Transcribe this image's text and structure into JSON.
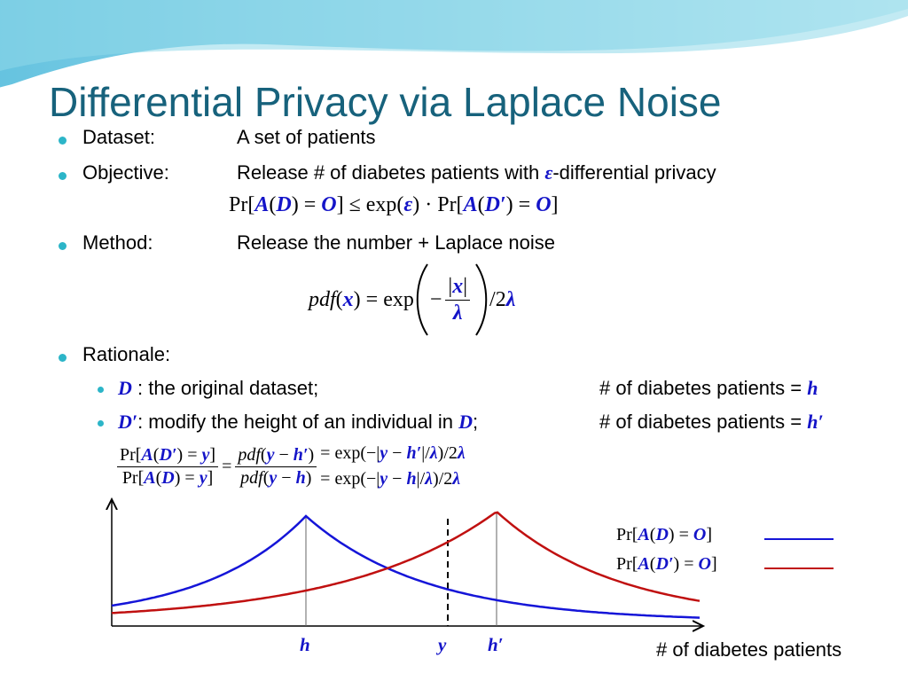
{
  "title": "Differential Privacy via Laplace Noise",
  "bullets": [
    {
      "label": "Dataset:",
      "text": [
        [
          "A set of patients",
          "n"
        ]
      ]
    },
    {
      "label": "Objective:",
      "text": [
        [
          "Release # of diabetes patients with ",
          "n"
        ],
        [
          "ε",
          "b"
        ],
        [
          "-differential privacy",
          "n"
        ]
      ]
    },
    {
      "label": "Method:",
      "text": [
        [
          "Release the number + Laplace noise",
          "n"
        ]
      ]
    },
    {
      "label": "Rationale:",
      "text": []
    }
  ],
  "privacy_formula": [
    [
      "Pr[",
      "n"
    ],
    [
      "A",
      "b"
    ],
    [
      "(",
      "n"
    ],
    [
      "D",
      "b"
    ],
    [
      ") = ",
      "n"
    ],
    [
      "O",
      "b"
    ],
    [
      "] ≤ exp(",
      "n"
    ],
    [
      "ε",
      "b"
    ],
    [
      ") · Pr[",
      "n"
    ],
    [
      "A",
      "b"
    ],
    [
      "(",
      "n"
    ],
    [
      "D′",
      "b"
    ],
    [
      ") = ",
      "n"
    ],
    [
      "O",
      "b"
    ],
    [
      "]",
      "n"
    ]
  ],
  "pdf_formula": {
    "left": [
      [
        "pdf",
        "i"
      ],
      [
        "(",
        "n"
      ],
      [
        "x",
        "b"
      ],
      [
        ") = exp",
        "n"
      ]
    ],
    "minus": "−",
    "numerator": [
      [
        "|",
        "n"
      ],
      [
        "x",
        "b"
      ],
      [
        "|",
        "n"
      ]
    ],
    "denominator": [
      [
        "λ",
        "b"
      ]
    ],
    "right": [
      [
        "/2",
        "n"
      ],
      [
        "λ",
        "b"
      ]
    ]
  },
  "sub_bullets": [
    {
      "left": [
        [
          "D",
          "b"
        ],
        [
          " : the original dataset;",
          "n"
        ]
      ],
      "right": [
        [
          "# of diabetes patients = ",
          "n"
        ],
        [
          "h",
          "b"
        ]
      ]
    },
    {
      "left": [
        [
          "D′",
          "b"
        ],
        [
          ": modify the height of an individual in ",
          "n"
        ],
        [
          "D",
          "b"
        ],
        [
          ";",
          "n"
        ]
      ],
      "right": [
        [
          "# of diabetes patients = ",
          "n"
        ],
        [
          "h′",
          "b"
        ]
      ]
    }
  ],
  "ratio_formula": {
    "numerator": [
      [
        "Pr[",
        "n"
      ],
      [
        "A",
        "b"
      ],
      [
        "(",
        "n"
      ],
      [
        "D′",
        "b"
      ],
      [
        ") = ",
        "n"
      ],
      [
        "y",
        "b"
      ],
      [
        "]",
        "n"
      ]
    ],
    "denominator": [
      [
        "Pr[",
        "n"
      ],
      [
        "A",
        "b"
      ],
      [
        "(",
        "n"
      ],
      [
        "D",
        "b"
      ],
      [
        ") = ",
        "n"
      ],
      [
        "y",
        "b"
      ],
      [
        "]",
        "n"
      ]
    ],
    "equals": "=",
    "pdf_numerator": [
      [
        "pdf",
        "i"
      ],
      [
        "(",
        "n"
      ],
      [
        "y",
        "b"
      ],
      [
        " − ",
        "n"
      ],
      [
        "h′",
        "b"
      ],
      [
        ")",
        "n"
      ]
    ],
    "pdf_denominator": [
      [
        "pdf",
        "i"
      ],
      [
        "(",
        "n"
      ],
      [
        "y",
        "b"
      ],
      [
        " − ",
        "n"
      ],
      [
        "h",
        "b"
      ],
      [
        ")",
        "n"
      ]
    ],
    "line1": [
      [
        "= exp(−|",
        "n"
      ],
      [
        "y",
        "b"
      ],
      [
        " − ",
        "n"
      ],
      [
        "h′",
        "b"
      ],
      [
        "|/",
        "n"
      ],
      [
        "λ",
        "b"
      ],
      [
        ")/2",
        "n"
      ],
      [
        "λ",
        "b"
      ]
    ],
    "line2": [
      [
        "= exp(−|",
        "n"
      ],
      [
        "y",
        "b"
      ],
      [
        " − ",
        "n"
      ],
      [
        "h",
        "b"
      ],
      [
        "|/",
        "n"
      ],
      [
        "λ",
        "b"
      ],
      [
        ")/2",
        "n"
      ],
      [
        "λ",
        "b"
      ]
    ]
  },
  "chart": {
    "markers": [
      [
        [
          "h",
          "b"
        ]
      ],
      [
        [
          "y",
          "b"
        ]
      ],
      [
        [
          "h′",
          "b"
        ]
      ]
    ],
    "legend": [
      {
        "label": [
          [
            "Pr[",
            "n"
          ],
          [
            "A",
            "b"
          ],
          [
            "(",
            "n"
          ],
          [
            "D",
            "b"
          ],
          [
            ") = ",
            "n"
          ],
          [
            "O",
            "b"
          ],
          [
            "]",
            "n"
          ]
        ],
        "color": "#1515d8"
      },
      {
        "label": [
          [
            "Pr[",
            "n"
          ],
          [
            "A",
            "b"
          ],
          [
            "(",
            "n"
          ],
          [
            "D′",
            "b"
          ],
          [
            ") = ",
            "n"
          ],
          [
            "O",
            "b"
          ],
          [
            "]",
            "n"
          ]
        ],
        "color": "#c01010"
      }
    ],
    "x_axis_label": "# of diabetes patients"
  }
}
